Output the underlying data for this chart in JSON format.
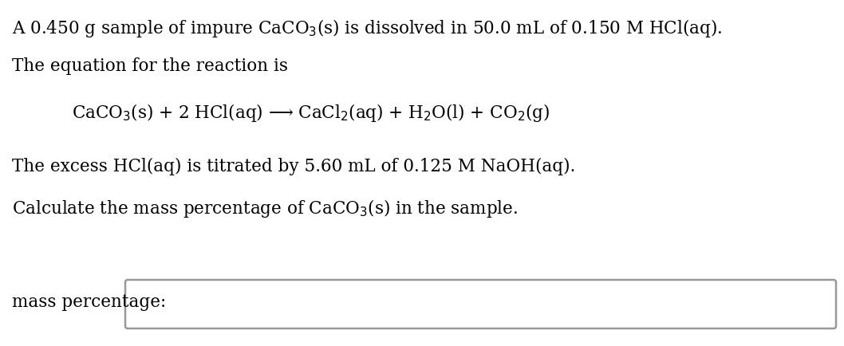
{
  "line1": "A 0.450 g sample of impure CaCO$_3$(s) is dissolved in 50.0 mL of 0.150 M HCl(aq).",
  "line2": "The equation for the reaction is",
  "equation": "CaCO$_3$(s) + 2 HCl(aq) ⟶ CaCl$_2$(aq) + H$_2$O(l) + CO$_2$(g)",
  "line4": "The excess HCl(aq) is titrated by 5.60 mL of 0.125 M NaOH(aq).",
  "line5": "Calculate the mass percentage of CaCO$_3$(s) in the sample.",
  "label": "mass percentage:",
  "bg_color": "#ffffff",
  "text_color": "#000000",
  "box_color": "#999999",
  "font_size": 15.5,
  "equation_font_size": 15.5,
  "label_font_size": 15.5
}
